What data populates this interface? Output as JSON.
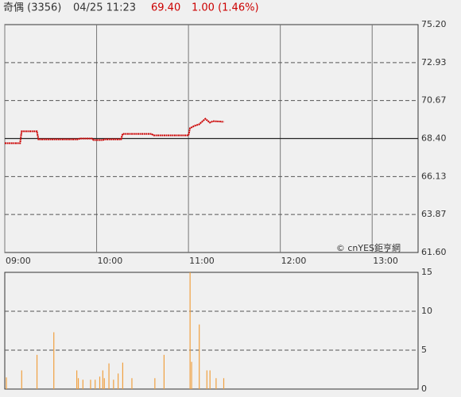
{
  "header": {
    "name": "奇偶 (3356)",
    "datetime": "04/25 11:23",
    "price": "69.40",
    "change": "1.00 (1.46%)"
  },
  "chart_data": [
    {
      "type": "line",
      "color": "#cc0000",
      "source": "© cnYES鉅亨網",
      "x": [
        0,
        10,
        11,
        21,
        22,
        48,
        49,
        57,
        58,
        64,
        65,
        76,
        77,
        96,
        97,
        120,
        121,
        124,
        127,
        131,
        134,
        136,
        143
      ],
      "values": [
        68.12,
        68.12,
        68.83,
        68.83,
        68.35,
        68.35,
        68.4,
        68.4,
        68.31,
        68.31,
        68.35,
        68.35,
        68.68,
        68.68,
        68.59,
        68.59,
        69.02,
        69.16,
        69.25,
        69.58,
        69.35,
        69.44,
        69.4
      ],
      "previous_close": 68.4,
      "xlim": [
        0,
        270
      ],
      "xticks": [
        {
          "value": 0,
          "label": "09:00"
        },
        {
          "value": 60,
          "label": "10:00"
        },
        {
          "value": 120,
          "label": "11:00"
        },
        {
          "value": 180,
          "label": "12:00"
        },
        {
          "value": 240,
          "label": "13:00"
        }
      ],
      "ylim": [
        61.6,
        75.2
      ],
      "yticks": [
        {
          "value": 61.6,
          "label": "61.60"
        },
        {
          "value": 63.87,
          "label": "63.87"
        },
        {
          "value": 66.13,
          "label": "66.13"
        },
        {
          "value": 68.4,
          "label": "68.40"
        },
        {
          "value": 70.67,
          "label": "70.67"
        },
        {
          "value": 72.93,
          "label": "72.93"
        },
        {
          "value": 75.2,
          "label": "75.20"
        }
      ],
      "grid": true
    },
    {
      "type": "bar",
      "color": "#f0a040",
      "x": [
        1,
        11,
        21,
        32,
        47,
        48,
        51,
        56,
        59,
        62,
        64,
        65,
        68,
        71,
        74,
        77,
        83,
        98,
        104,
        121,
        122,
        127,
        132,
        134,
        138,
        143
      ],
      "values": [
        1.5,
        2.4,
        4.4,
        7.3,
        2.4,
        1.4,
        1.2,
        1.2,
        1.2,
        1.6,
        2.4,
        1.4,
        3.3,
        1.2,
        2,
        3.4,
        1.4,
        1.4,
        4.4,
        15,
        3.5,
        8.3,
        2.4,
        2.4,
        1.4,
        1.4
      ],
      "xlim": [
        0,
        270
      ],
      "ylim": [
        0,
        15
      ],
      "yticks": [
        0,
        5,
        10,
        15
      ],
      "grid": true
    }
  ]
}
